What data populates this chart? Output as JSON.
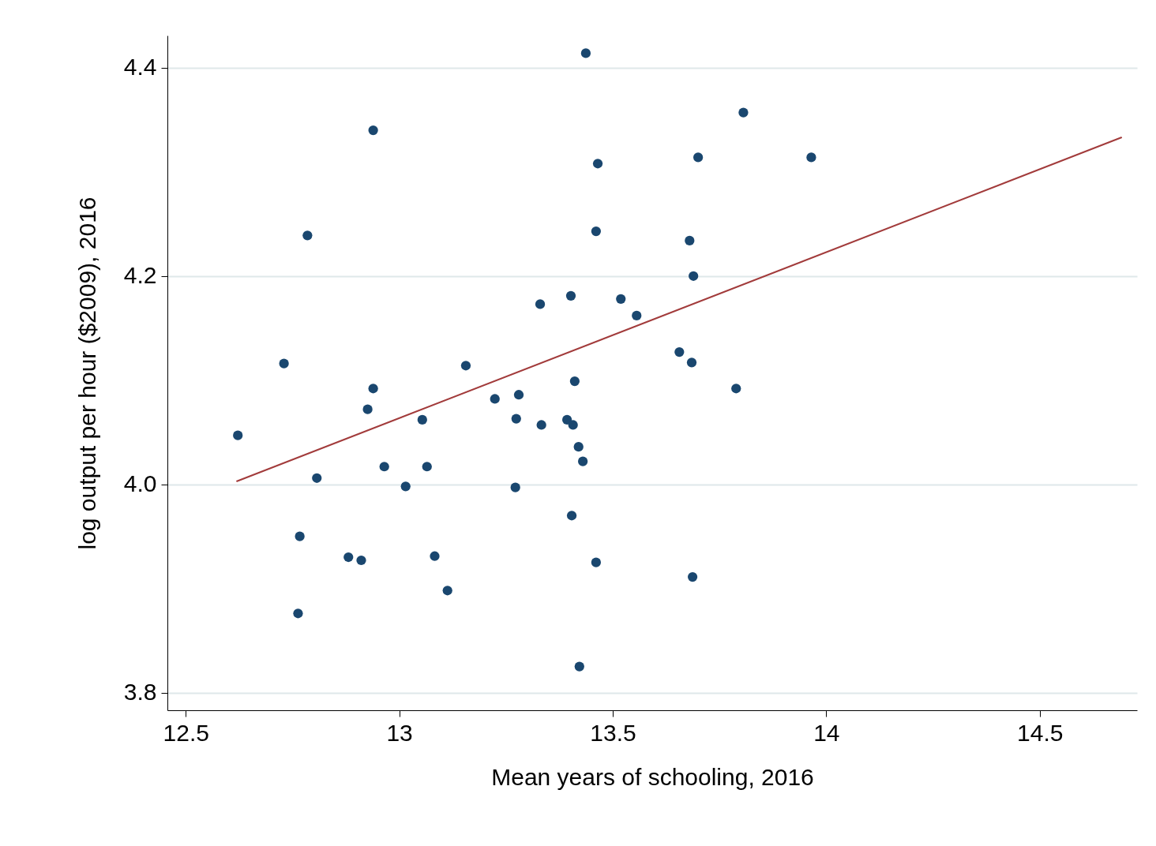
{
  "chart_data": {
    "type": "scatter",
    "xlabel": "Mean years of schooling, 2016",
    "ylabel": "log output per hour ($2009), 2016",
    "xlim": [
      12.457,
      14.728
    ],
    "ylim": [
      3.783,
      4.431
    ],
    "xticks": [
      12.5,
      13,
      13.5,
      14,
      14.5
    ],
    "yticks": [
      {
        "value": 3.8,
        "label": "3.8"
      },
      {
        "value": 4,
        "label": "4.0"
      },
      {
        "value": 4.2,
        "label": "4.2"
      },
      {
        "value": 4.4,
        "label": "4.4"
      }
    ],
    "grid": "y",
    "series": [
      {
        "marker": "circle",
        "color": "#1a476f",
        "x": [
          13.437,
          12.939,
          13.806,
          13.465,
          13.7,
          13.965,
          12.785,
          13.461,
          13.68,
          13.689,
          13.33,
          13.402,
          13.519,
          13.556,
          12.73,
          13.156,
          13.656,
          13.685,
          12.939,
          13.411,
          13.789,
          12.926,
          13.224,
          13.28,
          12.622,
          13.054,
          13.274,
          13.333,
          13.393,
          13.407,
          13.42,
          13.43,
          12.965,
          13.065,
          12.807,
          13.015,
          13.272,
          13.404,
          12.767,
          12.881,
          12.911,
          13.083,
          13.461,
          13.687,
          13.113,
          12.763,
          13.422
        ],
        "values": [
          4.414,
          4.34,
          4.357,
          4.308,
          4.314,
          4.314,
          4.239,
          4.243,
          4.234,
          4.2,
          4.173,
          4.181,
          4.178,
          4.162,
          4.116,
          4.114,
          4.127,
          4.117,
          4.092,
          4.099,
          4.092,
          4.072,
          4.082,
          4.086,
          4.047,
          4.062,
          4.063,
          4.057,
          4.062,
          4.057,
          4.036,
          4.022,
          4.017,
          4.017,
          4.006,
          3.998,
          3.997,
          3.97,
          3.95,
          3.93,
          3.927,
          3.931,
          3.925,
          3.911,
          3.898,
          3.876,
          3.825
        ]
      },
      {
        "type": "line",
        "color": "#a23b3b",
        "x": [
          12.62,
          14.691
        ],
        "values": [
          4.003,
          4.333
        ]
      }
    ]
  }
}
